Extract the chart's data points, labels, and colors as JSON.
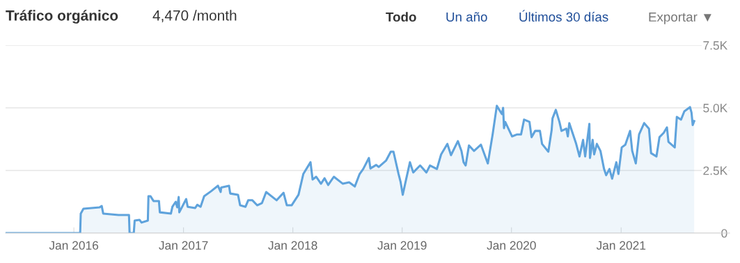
{
  "chart_data": {
    "type": "area",
    "title": "Tráfico orgánico",
    "subtitle": "4,470 /month",
    "annotations": [
      "Todo",
      "Un año",
      "Últimos 30 días",
      "Exportar ▼"
    ],
    "xlim": [
      "2015-05-18",
      "2021-12-29"
    ],
    "xticks": [
      {
        "value": "2016-01-01",
        "label": "Jan 2016"
      },
      {
        "value": "2017-01-01",
        "label": "Jan 2017"
      },
      {
        "value": "2018-01-01",
        "label": "Jan 2018"
      },
      {
        "value": "2019-01-01",
        "label": "Jan 2019"
      },
      {
        "value": "2020-01-01",
        "label": "Jan 2020"
      },
      {
        "value": "2021-01-01",
        "label": "Jan 2021"
      }
    ],
    "ylim": [
      0,
      7500
    ],
    "yticks": [
      0,
      {
        "value": 2500,
        "label": "2.5K"
      },
      {
        "value": 5000,
        "label": "5.0K"
      },
      {
        "value": 7500,
        "label": "7.5K"
      }
    ],
    "grid": "y",
    "legend": false,
    "series": [
      {
        "color": "#5fa3dc",
        "x": [
          "2015-05-18",
          "2016-01-22",
          "2016-01-24",
          "2016-02-02",
          "2016-03-27",
          "2016-04-03",
          "2016-04-08",
          "2016-05-29",
          "2016-07-03",
          "2016-07-05",
          "2016-07-19",
          "2016-07-22",
          "2016-08-07",
          "2016-08-14",
          "2016-09-04",
          "2016-09-06",
          "2016-09-13",
          "2016-09-23",
          "2016-10-11",
          "2016-10-14",
          "2016-11-20",
          "2016-11-25",
          "2016-12-06",
          "2016-12-11",
          "2016-12-16",
          "2016-12-18",
          "2017-01-10",
          "2017-01-15",
          "2017-02-09",
          "2017-02-16",
          "2017-02-27",
          "2017-03-11",
          "2017-04-03",
          "2017-04-26",
          "2017-05-05",
          "2017-05-07",
          "2017-06-02",
          "2017-06-06",
          "2017-07-02",
          "2017-07-09",
          "2017-07-27",
          "2017-08-05",
          "2017-08-19",
          "2017-09-04",
          "2017-09-20",
          "2017-10-04",
          "2017-11-08",
          "2017-12-01",
          "2017-12-12",
          "2017-12-28",
          "2018-01-20",
          "2018-02-05",
          "2018-03-01",
          "2018-03-08",
          "2018-03-20",
          "2018-04-05",
          "2018-04-17",
          "2018-04-29",
          "2018-05-18",
          "2018-06-17",
          "2018-07-08",
          "2018-07-27",
          "2018-08-12",
          "2018-08-24",
          "2018-09-12",
          "2018-09-17",
          "2018-10-06",
          "2018-10-15",
          "2018-11-08",
          "2018-11-24",
          "2018-12-03",
          "2018-12-20",
          "2018-12-27",
          "2019-01-03",
          "2019-01-13",
          "2019-01-27",
          "2019-02-07",
          "2019-03-02",
          "2019-03-23",
          "2019-04-04",
          "2019-04-27",
          "2019-05-11",
          "2019-06-01",
          "2019-06-13",
          "2019-07-06",
          "2019-07-18",
          "2019-07-25",
          "2019-08-01",
          "2019-08-12",
          "2019-08-29",
          "2019-09-21",
          "2019-10-14",
          "2019-10-30",
          "2019-11-13",
          "2019-11-30",
          "2019-12-04",
          "2019-12-07",
          "2019-12-11",
          "2020-01-03",
          "2020-01-20",
          "2020-02-02",
          "2020-02-12",
          "2020-03-01",
          "2020-03-08",
          "2020-03-20",
          "2020-04-05",
          "2020-04-12",
          "2020-05-03",
          "2020-05-14",
          "2020-05-17",
          "2020-05-28",
          "2020-06-09",
          "2020-06-16",
          "2020-07-02",
          "2020-07-07",
          "2020-07-12",
          "2020-08-04",
          "2020-08-15",
          "2020-08-27",
          "2020-09-03",
          "2020-09-10",
          "2020-09-17",
          "2020-09-19",
          "2020-09-28",
          "2020-10-03",
          "2020-10-12",
          "2020-10-24",
          "2020-11-05",
          "2020-11-12",
          "2020-11-23",
          "2020-12-02",
          "2020-12-16",
          "2020-12-23",
          "2021-01-03",
          "2021-01-15",
          "2021-01-31",
          "2021-02-07",
          "2021-02-19",
          "2021-03-02",
          "2021-03-19",
          "2021-04-04",
          "2021-04-11",
          "2021-04-29",
          "2021-05-09",
          "2021-05-23",
          "2021-06-03",
          "2021-06-08",
          "2021-06-29",
          "2021-07-06",
          "2021-07-20",
          "2021-07-31",
          "2021-08-19",
          "2021-08-24",
          "2021-08-28",
          "2021-09-02"
        ],
        "values": [
          0,
          0,
          780,
          970,
          1030,
          1080,
          780,
          720,
          720,
          0,
          0,
          500,
          530,
          420,
          500,
          1470,
          1470,
          1280,
          1280,
          830,
          780,
          1050,
          1250,
          1030,
          1440,
          830,
          1360,
          1050,
          1000,
          1130,
          1050,
          1470,
          1670,
          1890,
          1640,
          1820,
          1890,
          1580,
          1530,
          1110,
          1050,
          1310,
          1310,
          1110,
          1200,
          1640,
          1310,
          1610,
          1110,
          1110,
          1530,
          2360,
          2830,
          2140,
          2250,
          1970,
          2190,
          1920,
          2250,
          1970,
          2030,
          1860,
          2360,
          2560,
          3000,
          2580,
          2720,
          2640,
          2890,
          3250,
          3250,
          2360,
          2030,
          1530,
          2080,
          2830,
          2420,
          2700,
          2420,
          2700,
          2560,
          3140,
          3560,
          3110,
          3670,
          3280,
          2830,
          2700,
          3500,
          3280,
          3530,
          2780,
          3940,
          5080,
          4750,
          5000,
          4190,
          4440,
          3860,
          3940,
          3940,
          4530,
          4440,
          3830,
          4080,
          4080,
          3560,
          3250,
          4110,
          4580,
          4920,
          4440,
          4080,
          4170,
          3860,
          4390,
          3560,
          3060,
          3720,
          3060,
          3720,
          4360,
          3000,
          3720,
          3140,
          3560,
          3280,
          2560,
          2310,
          2560,
          2170,
          2830,
          2360,
          3420,
          3530,
          4080,
          3280,
          2780,
          3940,
          4390,
          4170,
          3190,
          3060,
          3830,
          4000,
          4220,
          3640,
          3420,
          4640,
          4530,
          4860,
          5030,
          4810,
          4310,
          4470
        ]
      }
    ]
  }
}
